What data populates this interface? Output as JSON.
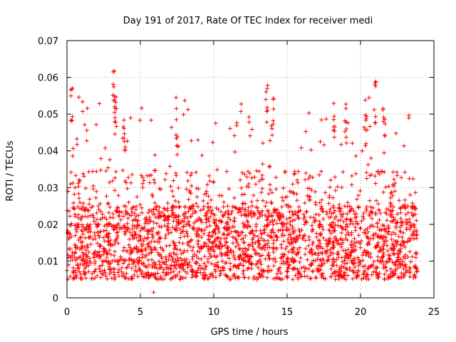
{
  "chart_data": {
    "type": "scatter",
    "title": "Day 191 of 2017, Rate Of TEC Index for receiver medi",
    "xlabel": "GPS time / hours",
    "ylabel": "ROTI / TECUs",
    "xlim": [
      0,
      25
    ],
    "ylim": [
      0,
      0.07
    ],
    "x_ticks": [
      "0",
      "5",
      "10",
      "15",
      "20",
      "25"
    ],
    "y_ticks": [
      "0",
      "0.01",
      "0.02",
      "0.03",
      "0.04",
      "0.05",
      "0.06",
      "0.07"
    ],
    "x_tick_values": [
      0,
      5,
      10,
      15,
      20,
      25
    ],
    "y_tick_values": [
      0,
      0.01,
      0.02,
      0.03,
      0.04,
      0.05,
      0.06,
      0.07
    ],
    "grid": true,
    "marker": "+",
    "color": "#ff0000",
    "x_range_of_data": [
      0,
      23.9
    ],
    "typical_band": [
      0.005,
      0.025
    ],
    "peaks": [
      {
        "x": 0.3,
        "y": 0.059
      },
      {
        "x": 3.2,
        "y": 0.062
      },
      {
        "x": 3.3,
        "y": 0.056
      },
      {
        "x": 13.6,
        "y": 0.058
      },
      {
        "x": 14.0,
        "y": 0.055
      },
      {
        "x": 18.2,
        "y": 0.055
      },
      {
        "x": 19.0,
        "y": 0.054
      },
      {
        "x": 21.0,
        "y": 0.059
      },
      {
        "x": 21.6,
        "y": 0.055
      },
      {
        "x": 20.4,
        "y": 0.052
      },
      {
        "x": 7.5,
        "y": 0.049
      },
      {
        "x": 3.9,
        "y": 0.049
      }
    ],
    "minimum": {
      "x": 5.9,
      "y": 0.0015
    }
  }
}
